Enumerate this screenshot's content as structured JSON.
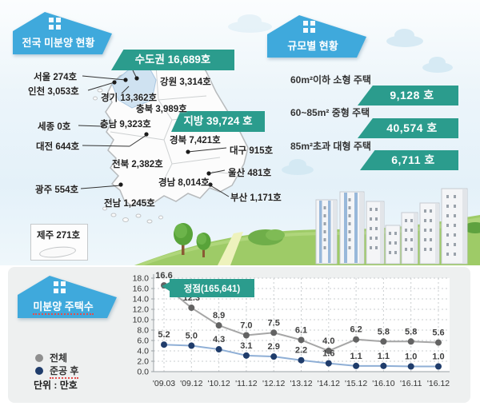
{
  "national": {
    "title": "전국 미분양 현황",
    "capital_badge": "수도권 16,689호",
    "regional_badge": "지방 39,724 호",
    "regions": [
      {
        "name": "seoul",
        "text": "서울 274호"
      },
      {
        "name": "incheon",
        "text": "인천 3,053호"
      },
      {
        "name": "gyeonggi",
        "text": "경기 13,362호"
      },
      {
        "name": "gangwon",
        "text": "강원 3,314호"
      },
      {
        "name": "chungbuk",
        "text": "충북 3,989호"
      },
      {
        "name": "chungnam",
        "text": "충남 9,323호"
      },
      {
        "name": "sejong",
        "text": "세종 0호"
      },
      {
        "name": "daejeon",
        "text": "대전 644호"
      },
      {
        "name": "gyeongbuk",
        "text": "경북 7,421호"
      },
      {
        "name": "daegu",
        "text": "대구 915호"
      },
      {
        "name": "jeonbuk",
        "text": "전북 2,382호"
      },
      {
        "name": "ulsan",
        "text": "울산 481호"
      },
      {
        "name": "gyeongnam",
        "text": "경남 8,014호"
      },
      {
        "name": "gwangju",
        "text": "광주 554호"
      },
      {
        "name": "jeonnam",
        "text": "전남 1,245호"
      },
      {
        "name": "busan",
        "text": "부산 1,171호"
      }
    ],
    "jeju_label": "제주 271호"
  },
  "by_size": {
    "title": "규모별 현황",
    "rows": [
      {
        "label": "60m²이하 소형 주택",
        "value": "9,128 호"
      },
      {
        "label": "60~85m² 중형 주택",
        "value": "40,574 호"
      },
      {
        "label": "85m²초과 대형 주택",
        "value": "6,711 호"
      }
    ]
  },
  "chart_data": {
    "type": "line",
    "title": "미분양 주택수",
    "unit": "단위 : 만호",
    "categories": [
      "'09.03",
      "'09.12",
      "'10.12",
      "'11.12",
      "'12.12",
      "'13.12",
      "'14.12",
      "'15.12",
      "'16.10",
      "'16.11",
      "'16.12"
    ],
    "series": [
      {
        "name": "전체",
        "values": [
          16.6,
          12.3,
          8.9,
          7.0,
          7.5,
          6.1,
          4.0,
          6.2,
          5.8,
          5.8,
          5.6
        ]
      },
      {
        "name": "준공 후",
        "values": [
          5.2,
          5.0,
          4.3,
          3.1,
          2.9,
          2.2,
          1.6,
          1.1,
          1.1,
          1.0,
          1.0
        ]
      }
    ],
    "annotation": "정점(165,641)",
    "ylim": [
      0,
      18
    ],
    "ytick_step": 2,
    "legend_position": "left",
    "grid": true,
    "colors": {
      "total_line": "#a6a6a6",
      "total_dot": "#636363",
      "after_line": "#8fafd6",
      "after_dot": "#1f3c6b",
      "annotation_bg": "#2b9c8d"
    }
  },
  "colors": {
    "house_badge_blue": "#3fa9dc",
    "teal_badge": "#2b9c8d",
    "capital_region_fill": "#cfe2f1"
  }
}
